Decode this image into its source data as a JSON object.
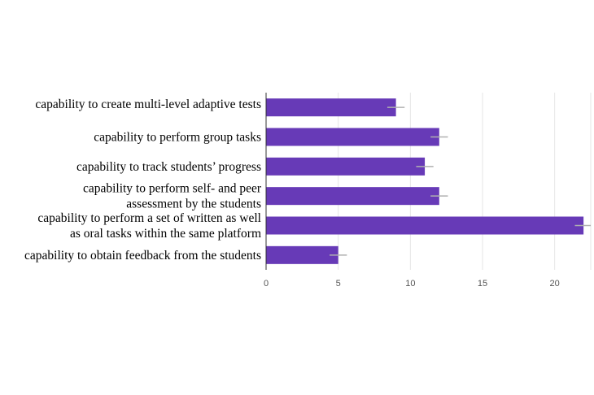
{
  "chart_data": {
    "type": "bar",
    "orientation": "horizontal",
    "categories": [
      [
        "capability to create multi-level adaptive tests"
      ],
      [
        "capability to perform group tasks"
      ],
      [
        "capability to track students’ progress"
      ],
      [
        "capability to perform self- and  peer",
        "assessment by the students"
      ],
      [
        "capability to perform a set of written as well",
        "as oral tasks within the same platform"
      ],
      [
        "capability to obtain feedback from the students"
      ]
    ],
    "values": [
      9,
      12,
      11,
      12,
      22,
      5
    ],
    "error_bars": true,
    "xlim": [
      0,
      22.5
    ],
    "xticks": [
      0,
      5,
      10,
      15,
      20
    ],
    "bar_color": "#673ab7",
    "grid": true,
    "title": "",
    "xlabel": "",
    "ylabel": ""
  }
}
